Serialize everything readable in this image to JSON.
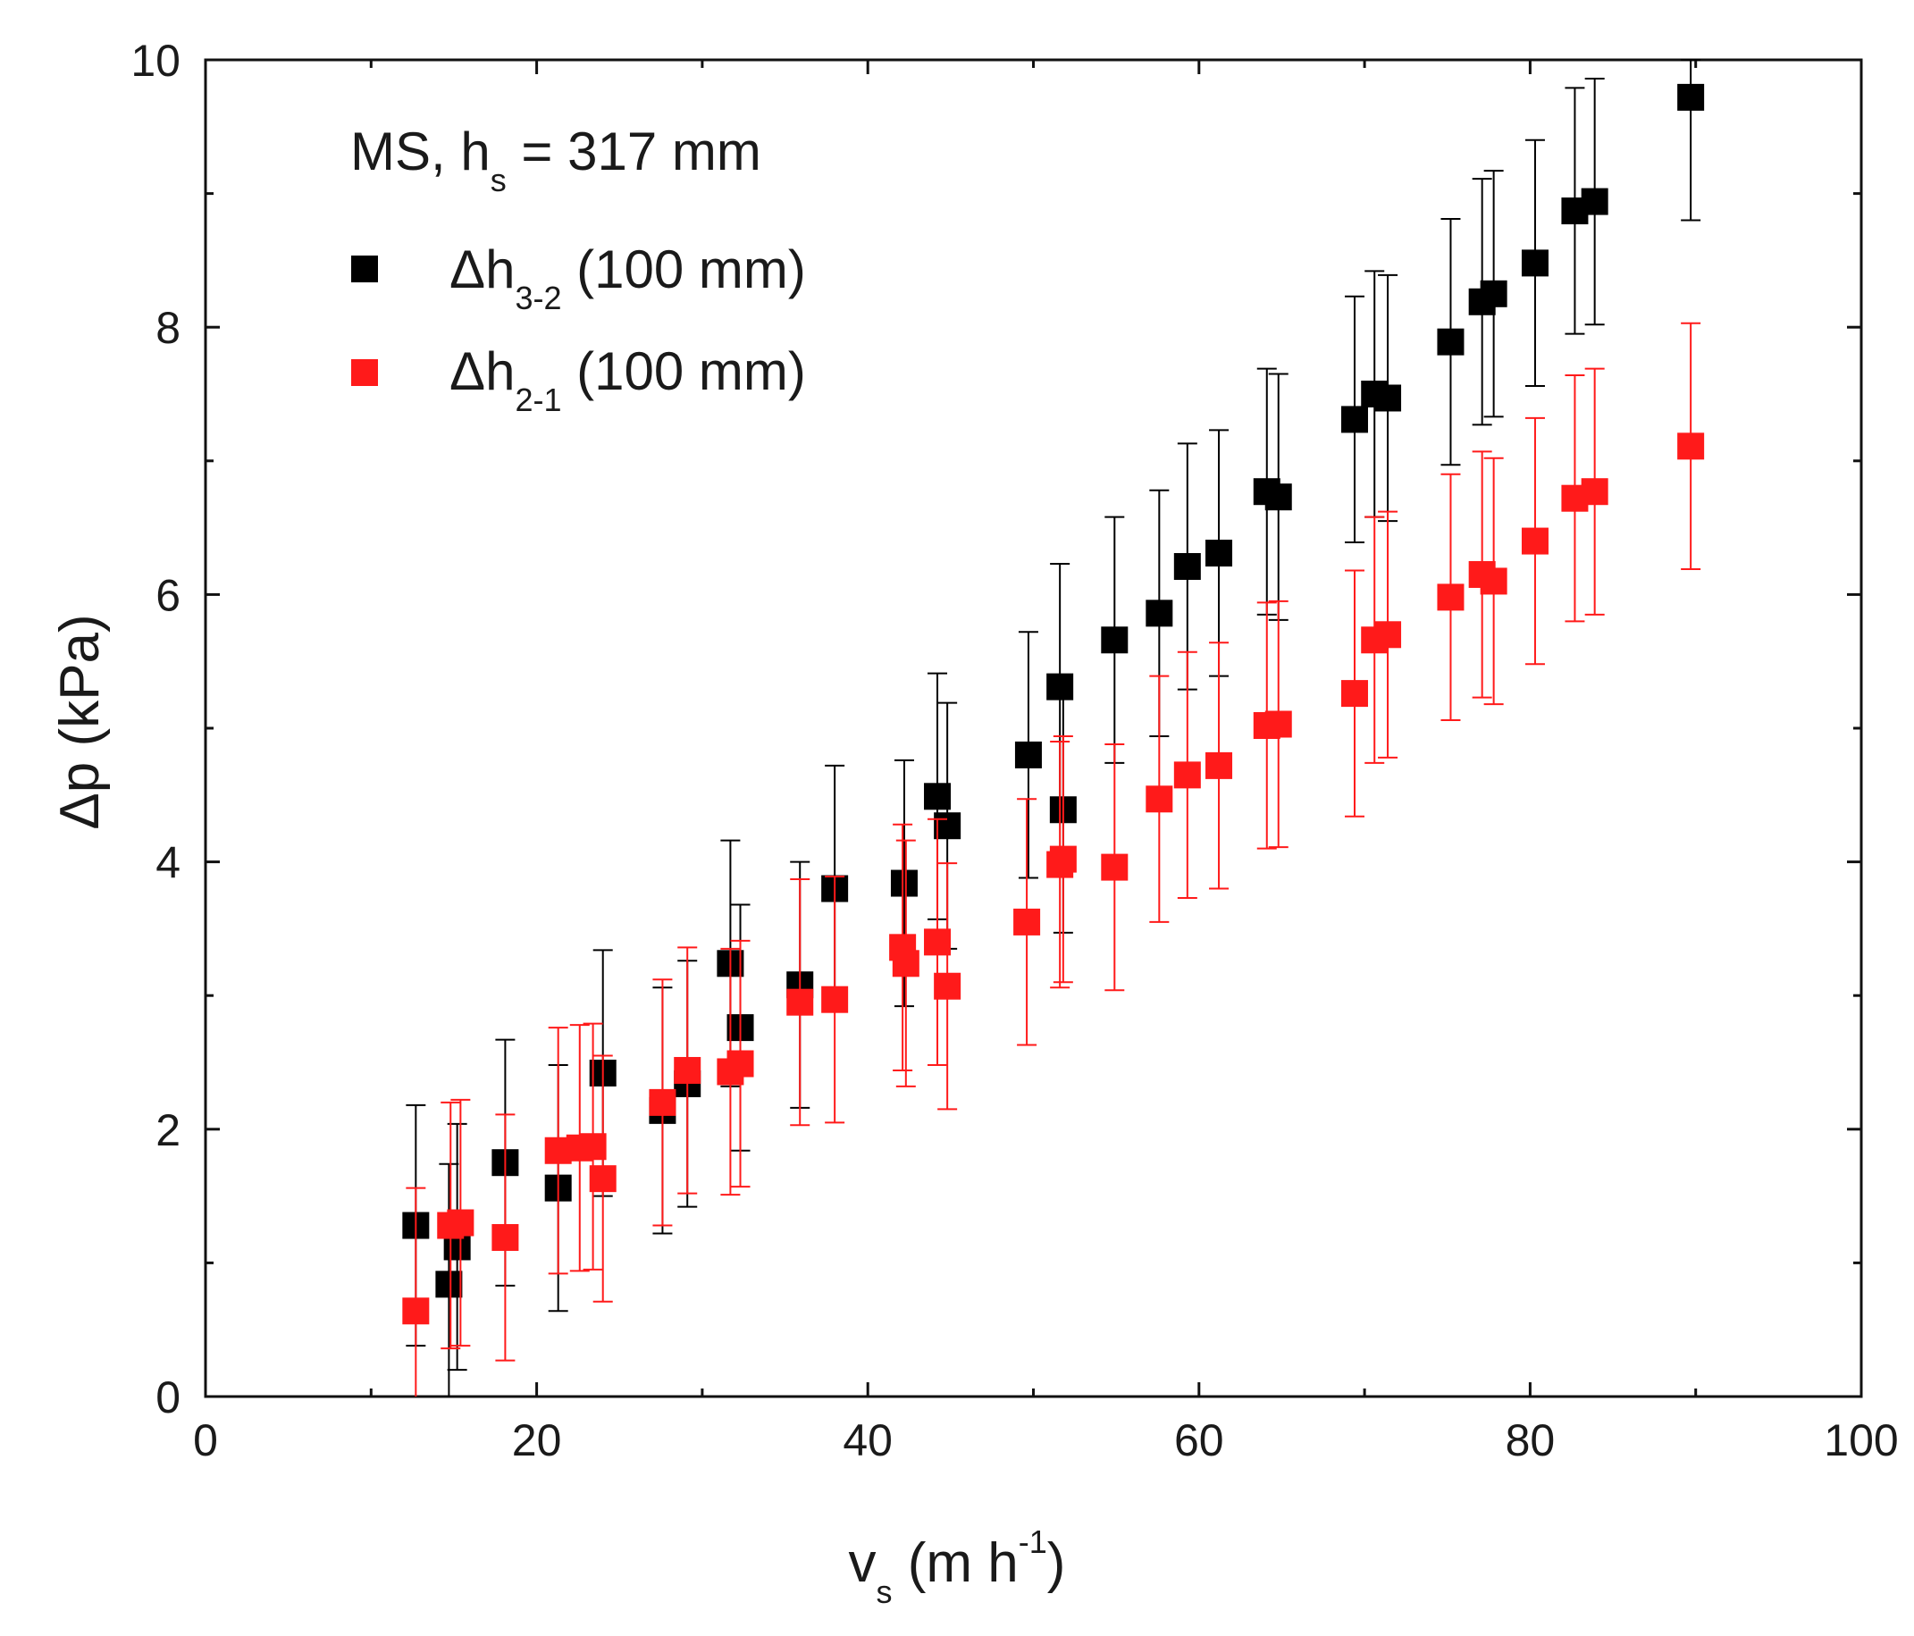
{
  "chart_data": {
    "type": "scatter",
    "annotation": {
      "main": "MS, h",
      "sub": "s",
      "rest": " = 317 mm"
    },
    "xlabel": {
      "main": "v",
      "sub": "s",
      "rest": " (m h",
      "sup": "-1",
      "end": ")"
    },
    "ylabel": "Δp (kPa)",
    "xlim": [
      0,
      100
    ],
    "ylim": [
      0,
      10
    ],
    "xticks": [
      0,
      20,
      40,
      60,
      80,
      100
    ],
    "yticks": [
      0,
      2,
      4,
      6,
      8,
      10
    ],
    "grid": false,
    "legend_position": "top-left",
    "series": [
      {
        "name": "Δh3-2 (100 mm)",
        "label_main": "Δh",
        "label_sub": "3-2",
        "label_rest": " (100 mm)",
        "color": "#000000",
        "points": [
          {
            "x": 12.7,
            "y": 1.28,
            "err": 0.9
          },
          {
            "x": 14.7,
            "y": 0.84,
            "err": 0.9
          },
          {
            "x": 15.2,
            "y": 1.12,
            "err": 0.92
          },
          {
            "x": 18.1,
            "y": 1.75,
            "err": 0.92
          },
          {
            "x": 21.3,
            "y": 1.56,
            "err": 0.92
          },
          {
            "x": 24.0,
            "y": 2.42,
            "err": 0.92
          },
          {
            "x": 27.6,
            "y": 2.14,
            "err": 0.92
          },
          {
            "x": 29.1,
            "y": 2.34,
            "err": 0.92
          },
          {
            "x": 31.7,
            "y": 3.24,
            "err": 0.92
          },
          {
            "x": 32.3,
            "y": 2.76,
            "err": 0.92
          },
          {
            "x": 35.9,
            "y": 3.08,
            "err": 0.92
          },
          {
            "x": 38.0,
            "y": 3.8,
            "err": 0.92
          },
          {
            "x": 42.2,
            "y": 3.84,
            "err": 0.92
          },
          {
            "x": 44.2,
            "y": 4.49,
            "err": 0.92
          },
          {
            "x": 44.8,
            "y": 4.27,
            "err": 0.92
          },
          {
            "x": 49.7,
            "y": 4.8,
            "err": 0.92
          },
          {
            "x": 51.6,
            "y": 5.31,
            "err": 0.92
          },
          {
            "x": 51.8,
            "y": 4.39,
            "err": 0.92
          },
          {
            "x": 54.9,
            "y": 5.66,
            "err": 0.92
          },
          {
            "x": 57.6,
            "y": 5.86,
            "err": 0.92
          },
          {
            "x": 59.3,
            "y": 6.21,
            "err": 0.92
          },
          {
            "x": 61.2,
            "y": 6.31,
            "err": 0.92
          },
          {
            "x": 64.1,
            "y": 6.77,
            "err": 0.92
          },
          {
            "x": 64.8,
            "y": 6.73,
            "err": 0.92
          },
          {
            "x": 69.4,
            "y": 7.31,
            "err": 0.92
          },
          {
            "x": 70.6,
            "y": 7.5,
            "err": 0.92
          },
          {
            "x": 71.4,
            "y": 7.47,
            "err": 0.92
          },
          {
            "x": 75.2,
            "y": 7.89,
            "err": 0.92
          },
          {
            "x": 77.1,
            "y": 8.19,
            "err": 0.92
          },
          {
            "x": 77.8,
            "y": 8.25,
            "err": 0.92
          },
          {
            "x": 80.3,
            "y": 8.48,
            "err": 0.92
          },
          {
            "x": 82.7,
            "y": 8.87,
            "err": 0.92
          },
          {
            "x": 83.9,
            "y": 8.94,
            "err": 0.92
          },
          {
            "x": 89.7,
            "y": 9.72,
            "err": 0.92
          }
        ]
      },
      {
        "name": "Δh2-1 (100 mm)",
        "label_main": "Δh",
        "label_sub": "2-1",
        "label_rest": " (100 mm)",
        "color": "#ff1a1a",
        "points": [
          {
            "x": 12.7,
            "y": 0.64,
            "err": 0.92
          },
          {
            "x": 14.8,
            "y": 1.28,
            "err": 0.92
          },
          {
            "x": 15.4,
            "y": 1.3,
            "err": 0.92
          },
          {
            "x": 18.1,
            "y": 1.19,
            "err": 0.92
          },
          {
            "x": 21.3,
            "y": 1.84,
            "err": 0.92
          },
          {
            "x": 22.6,
            "y": 1.86,
            "err": 0.92
          },
          {
            "x": 23.4,
            "y": 1.87,
            "err": 0.92
          },
          {
            "x": 24.0,
            "y": 1.63,
            "err": 0.92
          },
          {
            "x": 27.6,
            "y": 2.2,
            "err": 0.92
          },
          {
            "x": 29.1,
            "y": 2.44,
            "err": 0.92
          },
          {
            "x": 31.7,
            "y": 2.43,
            "err": 0.92
          },
          {
            "x": 32.3,
            "y": 2.49,
            "err": 0.92
          },
          {
            "x": 35.9,
            "y": 2.95,
            "err": 0.92
          },
          {
            "x": 38.0,
            "y": 2.97,
            "err": 0.92
          },
          {
            "x": 42.1,
            "y": 3.36,
            "err": 0.92
          },
          {
            "x": 42.3,
            "y": 3.24,
            "err": 0.92
          },
          {
            "x": 44.2,
            "y": 3.4,
            "err": 0.92
          },
          {
            "x": 44.8,
            "y": 3.07,
            "err": 0.92
          },
          {
            "x": 49.6,
            "y": 3.55,
            "err": 0.92
          },
          {
            "x": 51.6,
            "y": 3.98,
            "err": 0.92
          },
          {
            "x": 51.8,
            "y": 4.02,
            "err": 0.92
          },
          {
            "x": 54.9,
            "y": 3.96,
            "err": 0.92
          },
          {
            "x": 57.6,
            "y": 4.47,
            "err": 0.92
          },
          {
            "x": 59.3,
            "y": 4.65,
            "err": 0.92
          },
          {
            "x": 61.2,
            "y": 4.72,
            "err": 0.92
          },
          {
            "x": 64.1,
            "y": 5.02,
            "err": 0.92
          },
          {
            "x": 64.8,
            "y": 5.03,
            "err": 0.92
          },
          {
            "x": 69.4,
            "y": 5.26,
            "err": 0.92
          },
          {
            "x": 70.6,
            "y": 5.66,
            "err": 0.92
          },
          {
            "x": 71.4,
            "y": 5.7,
            "err": 0.92
          },
          {
            "x": 75.2,
            "y": 5.98,
            "err": 0.92
          },
          {
            "x": 77.1,
            "y": 6.15,
            "err": 0.92
          },
          {
            "x": 77.8,
            "y": 6.1,
            "err": 0.92
          },
          {
            "x": 80.3,
            "y": 6.4,
            "err": 0.92
          },
          {
            "x": 82.7,
            "y": 6.72,
            "err": 0.92
          },
          {
            "x": 83.9,
            "y": 6.77,
            "err": 0.92
          },
          {
            "x": 89.7,
            "y": 7.11,
            "err": 0.92
          }
        ]
      }
    ]
  }
}
